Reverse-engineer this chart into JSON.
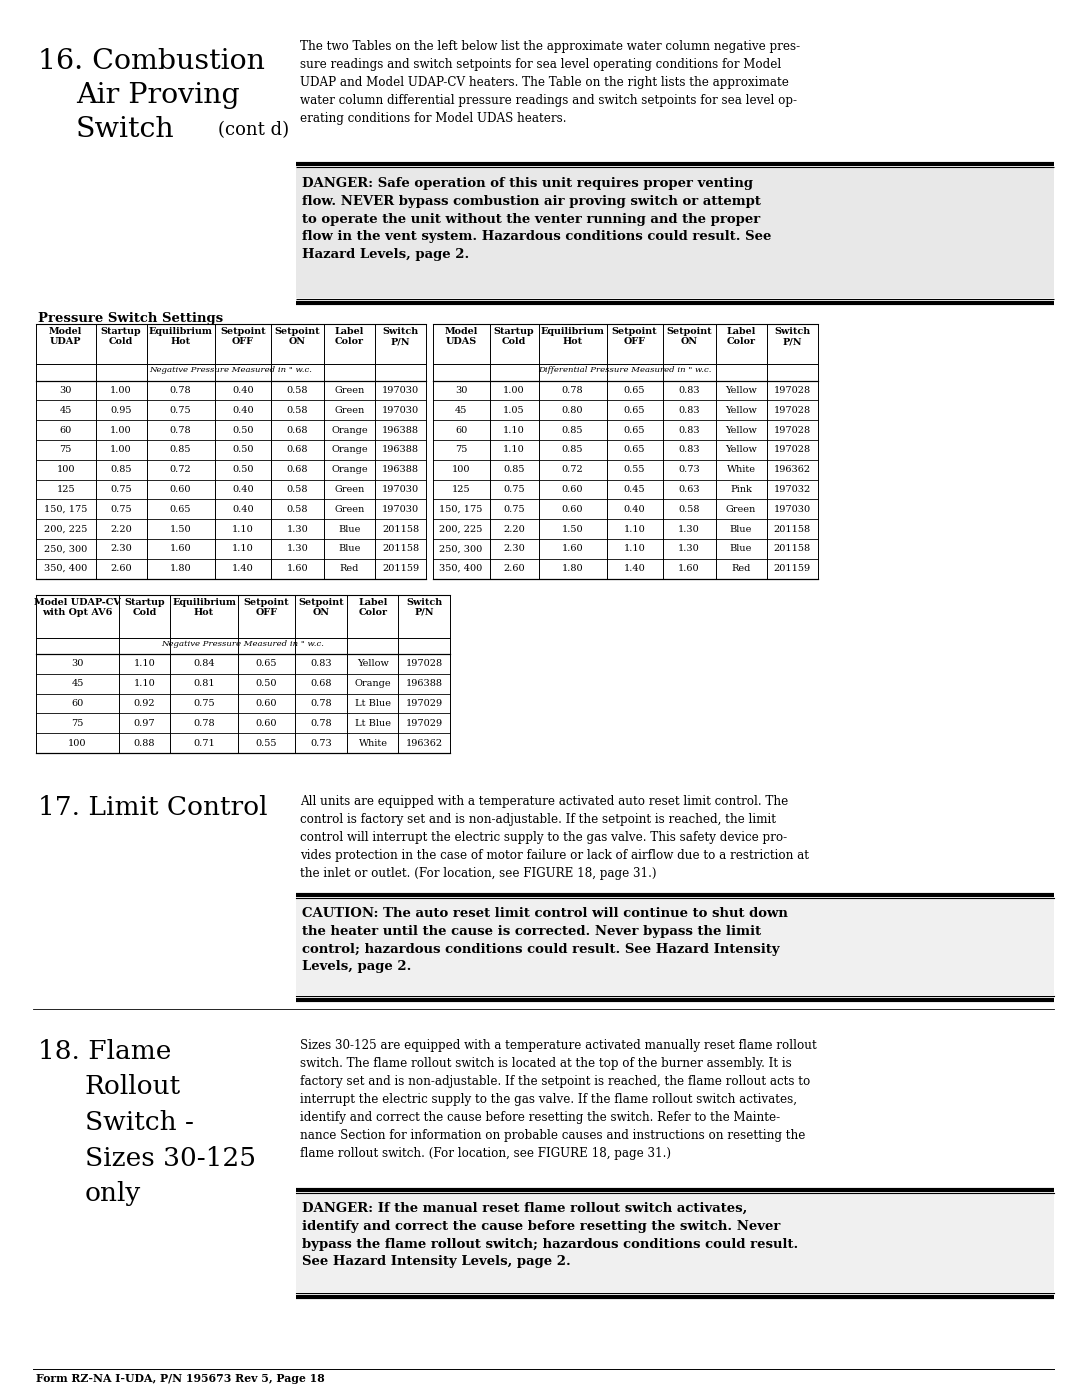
{
  "page_width": 10.8,
  "page_height": 13.97,
  "bg_color": "#ffffff",
  "section16_intro": "The two Tables on the left below list the approximate water column negative pres-\nsure readings and switch setpoints for sea level operating conditions for Model\nUDAP and Model UDAP-CV heaters. The Table on the right lists the approximate\nwater column differential pressure readings and switch setpoints for sea level op-\nerating conditions for Model UDAS heaters.",
  "danger1_text": "DANGER: Safe operation of this unit requires proper venting\nflow. NEVER bypass combustion air proving switch or attempt\nto operate the unit without the venter running and the proper\nflow in the vent system. Hazardous conditions could result. See\nHazard Levels, page 2.",
  "pressure_switch_label": "Pressure Switch Settings",
  "udap_rows": [
    [
      "30",
      "1.00",
      "0.78",
      "0.40",
      "0.58",
      "Green",
      "197030"
    ],
    [
      "45",
      "0.95",
      "0.75",
      "0.40",
      "0.58",
      "Green",
      "197030"
    ],
    [
      "60",
      "1.00",
      "0.78",
      "0.50",
      "0.68",
      "Orange",
      "196388"
    ],
    [
      "75",
      "1.00",
      "0.85",
      "0.50",
      "0.68",
      "Orange",
      "196388"
    ],
    [
      "100",
      "0.85",
      "0.72",
      "0.50",
      "0.68",
      "Orange",
      "196388"
    ],
    [
      "125",
      "0.75",
      "0.60",
      "0.40",
      "0.58",
      "Green",
      "197030"
    ],
    [
      "150, 175",
      "0.75",
      "0.65",
      "0.40",
      "0.58",
      "Green",
      "197030"
    ],
    [
      "200, 225",
      "2.20",
      "1.50",
      "1.10",
      "1.30",
      "Blue",
      "201158"
    ],
    [
      "250, 300",
      "2.30",
      "1.60",
      "1.10",
      "1.30",
      "Blue",
      "201158"
    ],
    [
      "350, 400",
      "2.60",
      "1.80",
      "1.40",
      "1.60",
      "Red",
      "201159"
    ]
  ],
  "udas_rows": [
    [
      "30",
      "1.00",
      "0.78",
      "0.65",
      "0.83",
      "Yellow",
      "197028"
    ],
    [
      "45",
      "1.05",
      "0.80",
      "0.65",
      "0.83",
      "Yellow",
      "197028"
    ],
    [
      "60",
      "1.10",
      "0.85",
      "0.65",
      "0.83",
      "Yellow",
      "197028"
    ],
    [
      "75",
      "1.10",
      "0.85",
      "0.65",
      "0.83",
      "Yellow",
      "197028"
    ],
    [
      "100",
      "0.85",
      "0.72",
      "0.55",
      "0.73",
      "White",
      "196362"
    ],
    [
      "125",
      "0.75",
      "0.60",
      "0.45",
      "0.63",
      "Pink",
      "197032"
    ],
    [
      "150, 175",
      "0.75",
      "0.60",
      "0.40",
      "0.58",
      "Green",
      "197030"
    ],
    [
      "200, 225",
      "2.20",
      "1.50",
      "1.10",
      "1.30",
      "Blue",
      "201158"
    ],
    [
      "250, 300",
      "2.30",
      "1.60",
      "1.10",
      "1.30",
      "Blue",
      "201158"
    ],
    [
      "350, 400",
      "2.60",
      "1.80",
      "1.40",
      "1.60",
      "Red",
      "201159"
    ]
  ],
  "udap_cv_rows": [
    [
      "30",
      "1.10",
      "0.84",
      "0.65",
      "0.83",
      "Yellow",
      "197028"
    ],
    [
      "45",
      "1.10",
      "0.81",
      "0.50",
      "0.68",
      "Orange",
      "196388"
    ],
    [
      "60",
      "0.92",
      "0.75",
      "0.60",
      "0.78",
      "Lt Blue",
      "197029"
    ],
    [
      "75",
      "0.97",
      "0.78",
      "0.60",
      "0.78",
      "Lt Blue",
      "197029"
    ],
    [
      "100",
      "0.88",
      "0.71",
      "0.55",
      "0.73",
      "White",
      "196362"
    ]
  ],
  "section17_text": "All units are equipped with a temperature activated auto reset limit control. The\ncontrol is factory set and is non-adjustable. If the setpoint is reached, the limit\ncontrol will interrupt the electric supply to the gas valve. This safety device pro-\nvides protection in the case of motor failure or lack of airflow due to a restriction at\nthe inlet or outlet. (For location, see FIGURE 18, page 31.)",
  "caution1_text": "CAUTION: The auto reset limit control will continue to shut down\nthe heater until the cause is corrected. Never bypass the limit\ncontrol; hazardous conditions could result. See Hazard Intensity\nLevels, page 2.",
  "section18_text": "Sizes 30-125 are equipped with a temperature activated manually reset flame rollout\nswitch. The flame rollout switch is located at the top of the burner assembly. It is\nfactory set and is non-adjustable. If the setpoint is reached, the flame rollout acts to\ninterrupt the electric supply to the gas valve. If the flame rollout switch activates,\nidentify and correct the cause before resetting the switch. Refer to the Mainte-\nnance Section for information on probable causes and instructions on resetting the\nflame rollout switch. (For location, see FIGURE 18, page 31.)",
  "danger2_text": "DANGER: If the manual reset flame rollout switch activates,\nidentify and correct the cause before resetting the switch. Never\nbypass the flame rollout switch; hazardous conditions could result.\nSee Hazard Intensity Levels, page 2.",
  "footer": "Form RZ-NA I-UDA, P/N 195673 Rev 5, Page 18"
}
